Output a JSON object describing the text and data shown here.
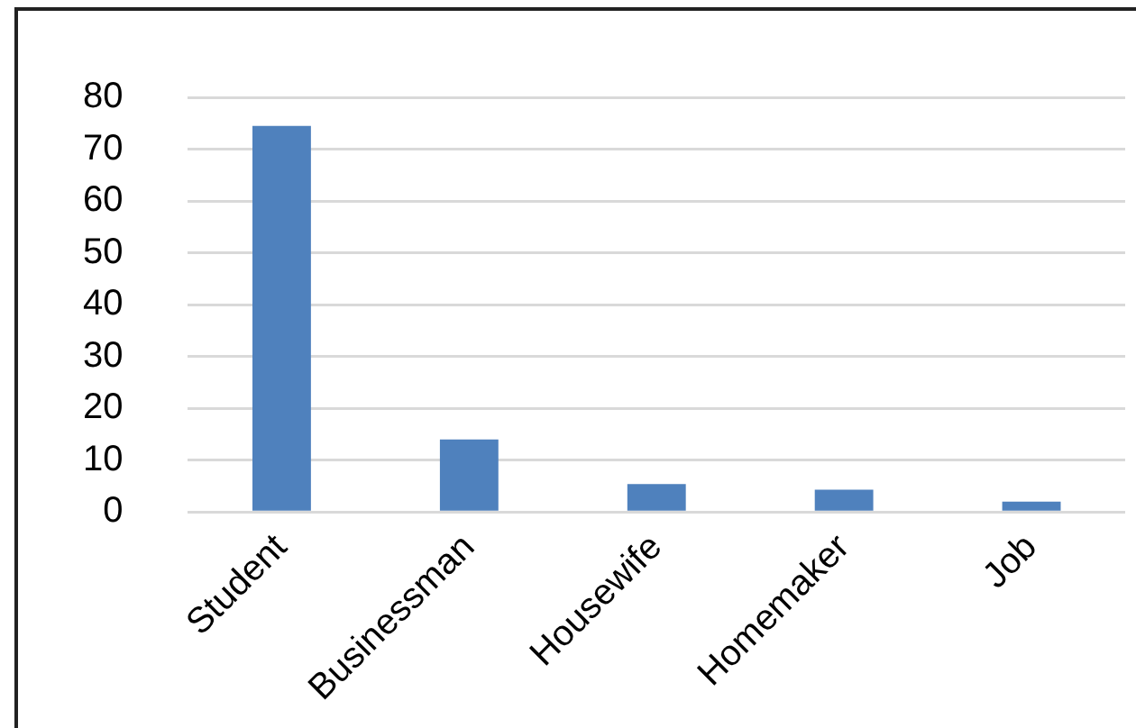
{
  "chart_data": {
    "type": "bar",
    "categories": [
      "Student",
      "Businessman",
      "Housewife",
      "Homemaker",
      "Job"
    ],
    "values": [
      74.5,
      14,
      5.4,
      4.3,
      2
    ],
    "color": "#4f81bd",
    "ylim": [
      0,
      80
    ],
    "yticks": [
      0,
      10,
      20,
      30,
      40,
      50,
      60,
      70,
      80
    ],
    "grid": "y"
  }
}
